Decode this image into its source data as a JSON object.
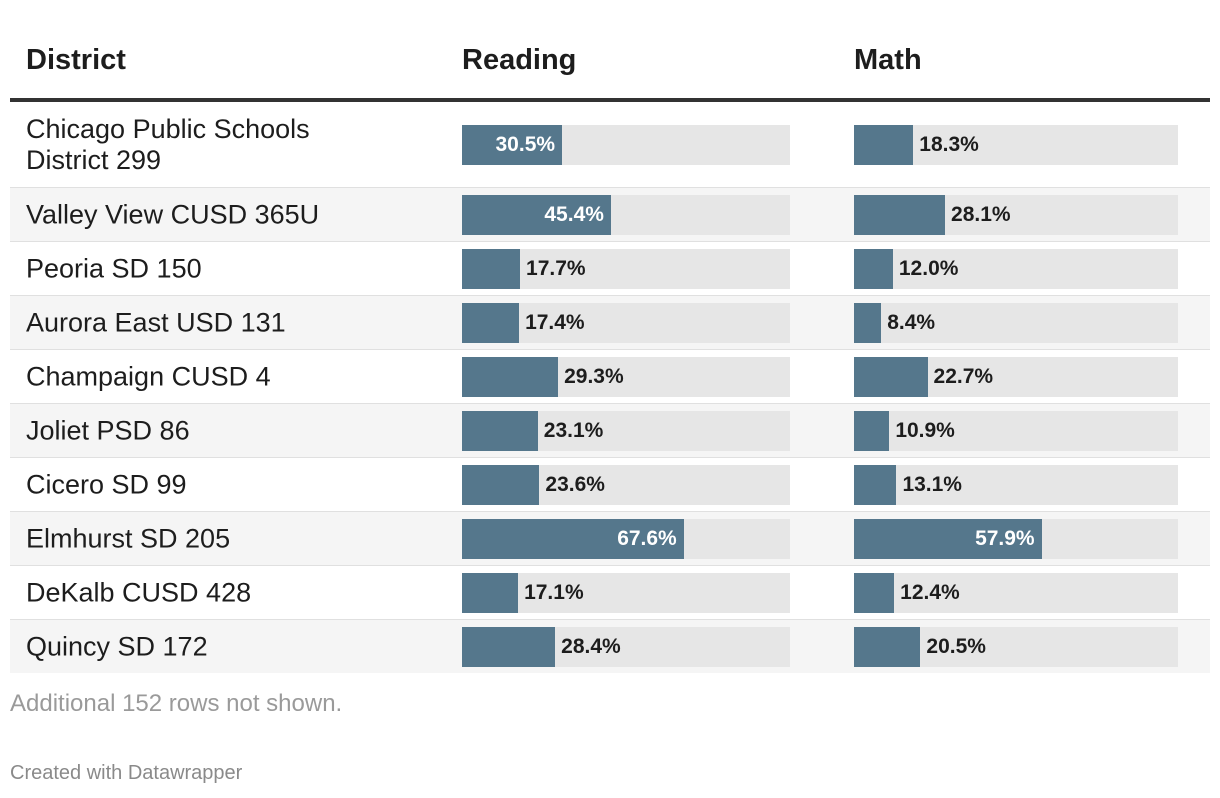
{
  "table": {
    "headers": {
      "district": "District",
      "reading": "Reading",
      "math": "Math"
    }
  },
  "chart_data": {
    "type": "table",
    "columns": [
      "District",
      "Reading",
      "Math"
    ],
    "scale_max": 100,
    "bar_color": "#55778c",
    "track_color": "#e6e6e6",
    "rows": [
      {
        "district": "Chicago Public Schools District 299",
        "district_lines": [
          "Chicago Public Schools",
          "District 299"
        ],
        "reading": 30.5,
        "reading_label": "30.5%",
        "math": 18.3,
        "math_label": "18.3%"
      },
      {
        "district": "Valley View CUSD 365U",
        "reading": 45.4,
        "reading_label": "45.4%",
        "math": 28.1,
        "math_label": "28.1%"
      },
      {
        "district": "Peoria SD 150",
        "reading": 17.7,
        "reading_label": "17.7%",
        "math": 12.0,
        "math_label": "12.0%"
      },
      {
        "district": "Aurora East USD 131",
        "reading": 17.4,
        "reading_label": "17.4%",
        "math": 8.4,
        "math_label": "8.4%"
      },
      {
        "district": "Champaign CUSD 4",
        "reading": 29.3,
        "reading_label": "29.3%",
        "math": 22.7,
        "math_label": "22.7%"
      },
      {
        "district": "Joliet PSD 86",
        "reading": 23.1,
        "reading_label": "23.1%",
        "math": 10.9,
        "math_label": "10.9%"
      },
      {
        "district": "Cicero SD 99",
        "reading": 23.6,
        "reading_label": "23.6%",
        "math": 13.1,
        "math_label": "13.1%"
      },
      {
        "district": "Elmhurst SD 205",
        "reading": 67.6,
        "reading_label": "67.6%",
        "math": 57.9,
        "math_label": "57.9%"
      },
      {
        "district": "DeKalb CUSD 428",
        "reading": 17.1,
        "reading_label": "17.1%",
        "math": 12.4,
        "math_label": "12.4%"
      },
      {
        "district": "Quincy SD 172",
        "reading": 28.4,
        "reading_label": "28.4%",
        "math": 20.5,
        "math_label": "20.5%"
      }
    ]
  },
  "footer": {
    "note": "Additional 152 rows not shown.",
    "credit": "Created with Datawrapper"
  }
}
